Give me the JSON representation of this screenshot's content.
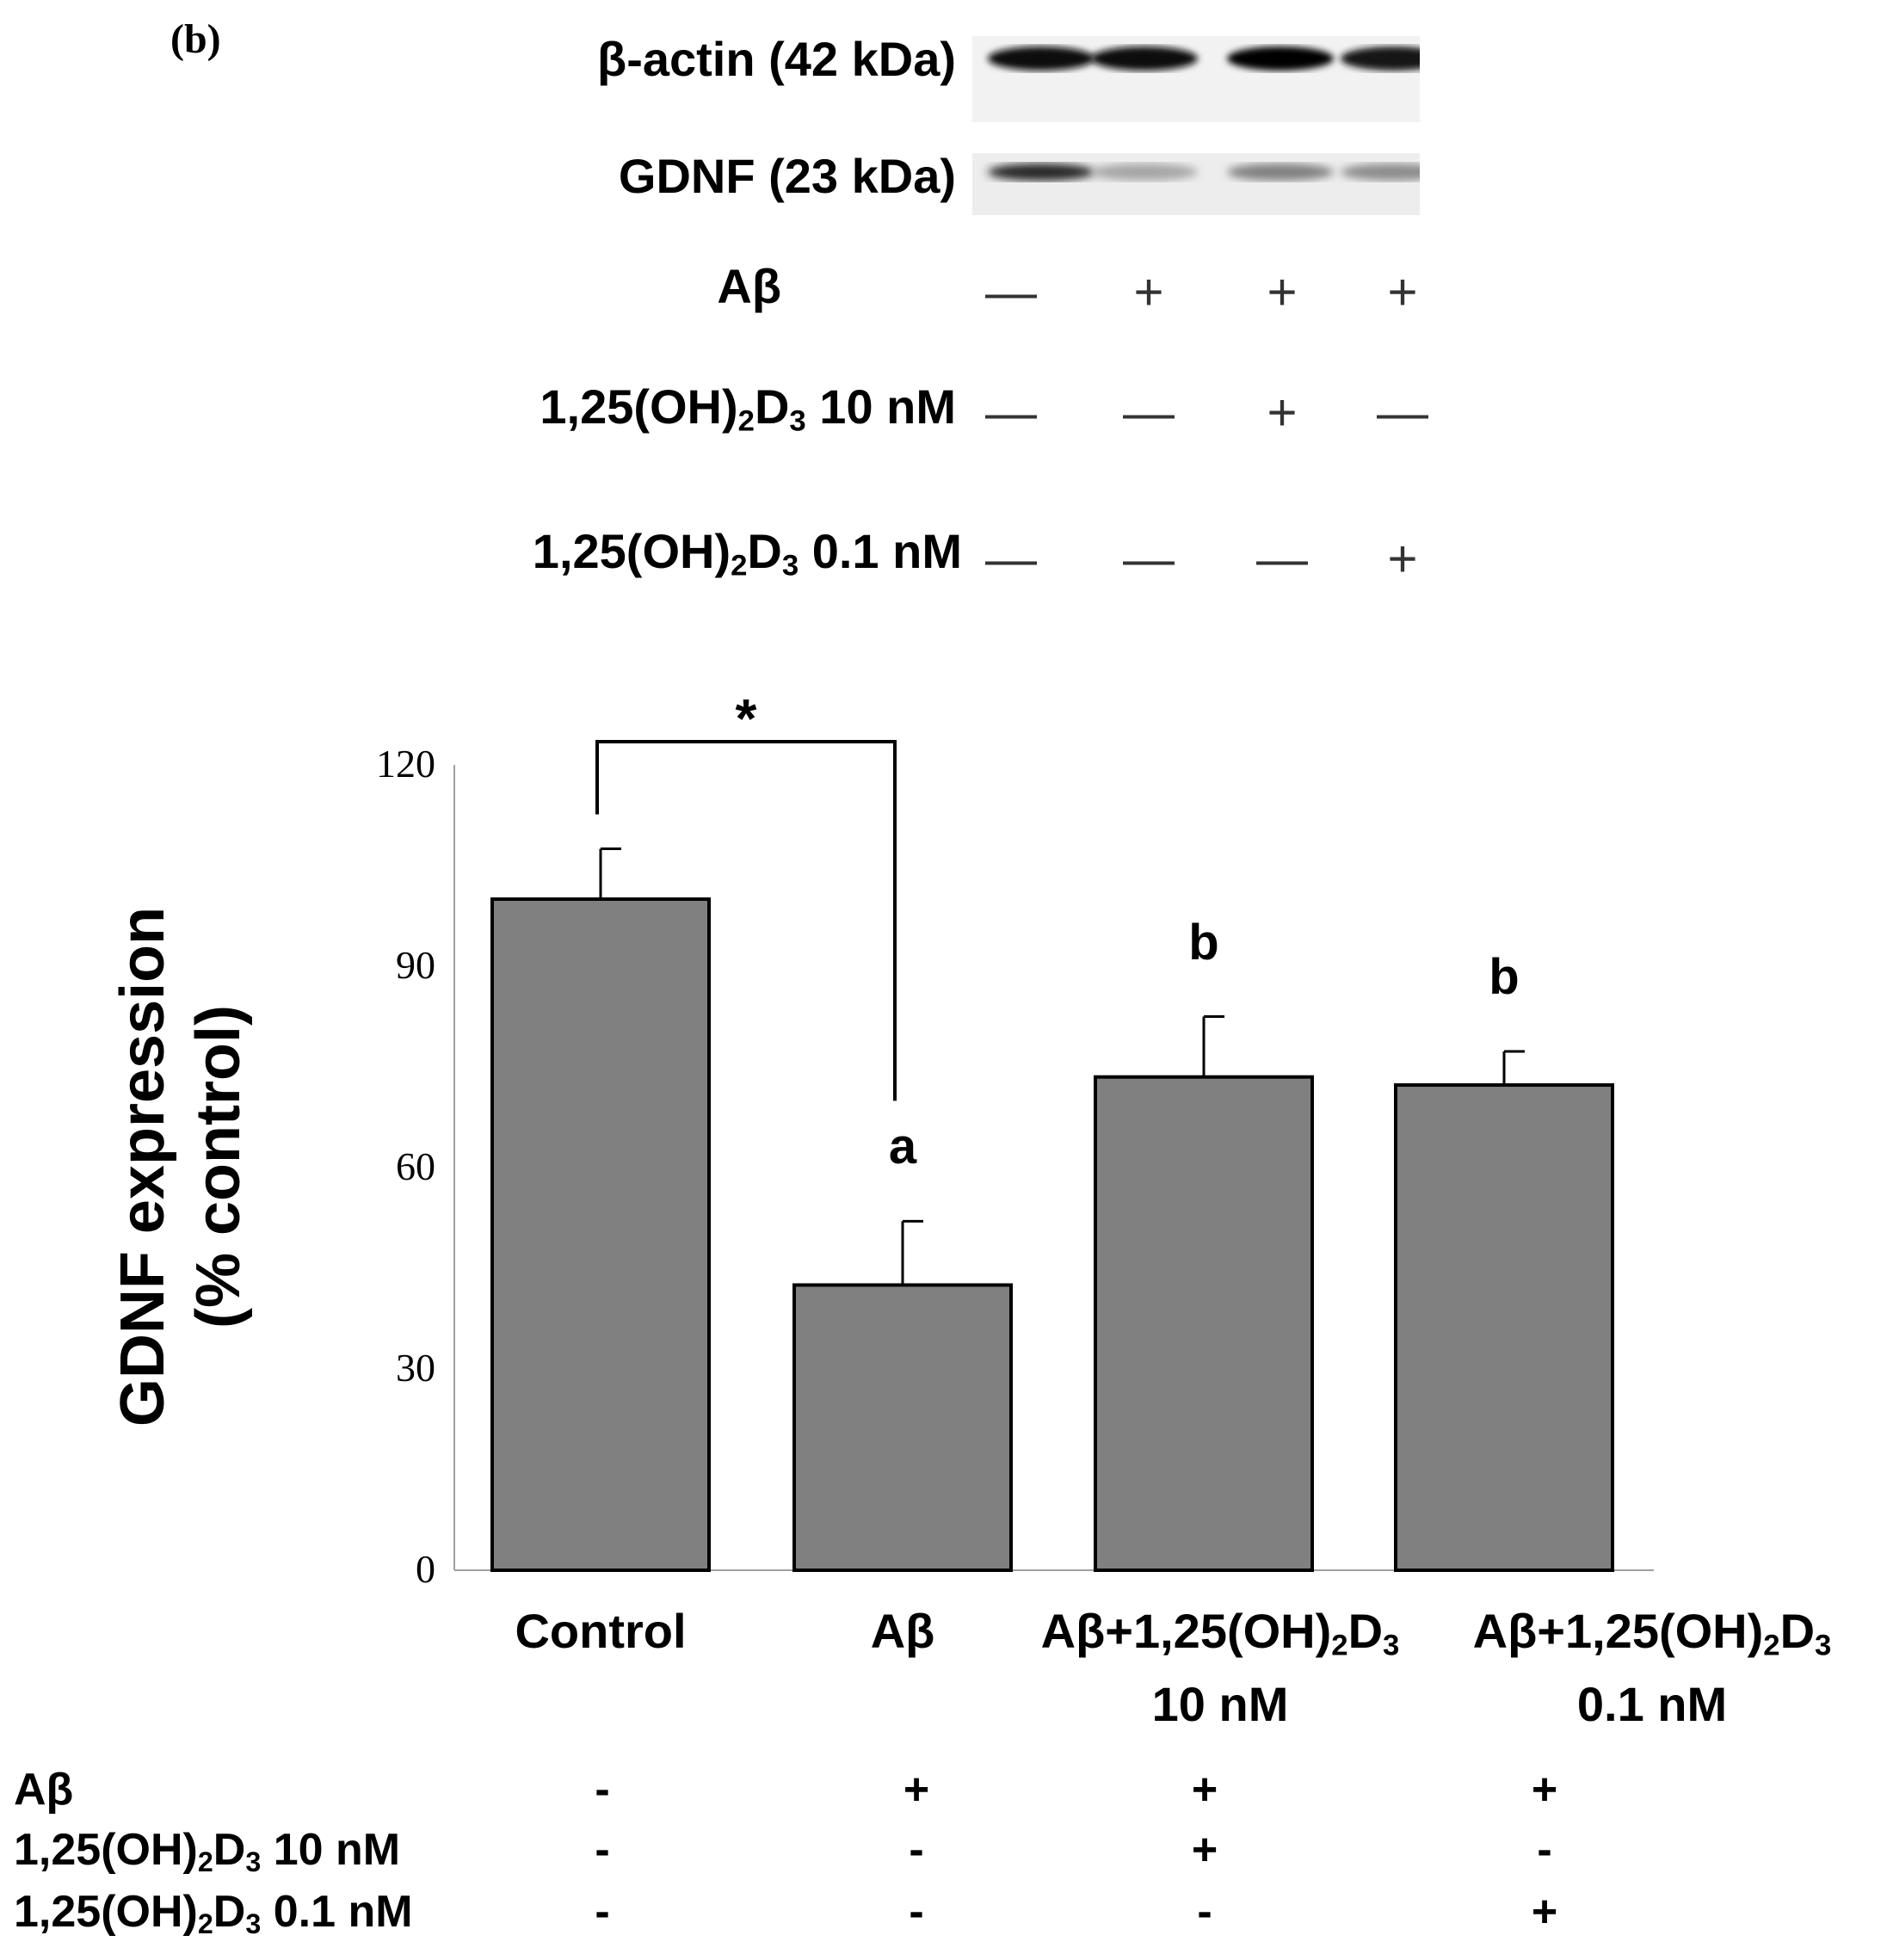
{
  "panel_label": "(b)",
  "western_blot": {
    "bands": [
      {
        "label": "β-actin (42 kDa)",
        "intensity": [
          0.95,
          0.95,
          0.98,
          0.92
        ]
      },
      {
        "label": "GDNF (23 kDa)",
        "intensity": [
          0.85,
          0.35,
          0.5,
          0.45
        ]
      }
    ],
    "conditions": [
      {
        "label_main": "Aβ",
        "label_sub": "",
        "label_tail": "",
        "signs": [
          "—",
          "+",
          "+",
          "+"
        ]
      },
      {
        "label_main": "1,25(OH)",
        "label_sub": "2",
        "label_mid": "D",
        "label_sub2": "3",
        "label_tail": " 10 nM",
        "signs": [
          "—",
          "—",
          "+",
          "—"
        ]
      },
      {
        "label_main": "1,25(OH)",
        "label_sub": "2",
        "label_mid": "D",
        "label_sub2": "3",
        "label_tail": " 0.1 nM",
        "signs": [
          "—",
          "—",
          "—",
          "+"
        ]
      }
    ]
  },
  "chart_data": {
    "type": "bar",
    "ylabel_line1": "GDNF expression",
    "ylabel_line2": "(% control)",
    "ylim": [
      0,
      120
    ],
    "yticks": [
      "0",
      "30",
      "60",
      "90",
      "120"
    ],
    "categories": [
      {
        "line1_main": "Control",
        "line1_sub": "",
        "line1_mid": "",
        "line1_sub2": "",
        "line2": ""
      },
      {
        "line1_main": "Aβ",
        "line1_sub": "",
        "line1_mid": "",
        "line1_sub2": "",
        "line2": ""
      },
      {
        "line1_main": "Aβ+1,25(OH)",
        "line1_sub": "2",
        "line1_mid": "D",
        "line1_sub2": "3",
        "line2": "10 nM"
      },
      {
        "line1_main": "Aβ+1,25(OH)",
        "line1_sub": "2",
        "line1_mid": "D",
        "line1_sub2": "3",
        "line2": "0.1 nM"
      }
    ],
    "values": [
      100,
      42.5,
      73.5,
      72.3
    ],
    "errors": [
      7.5,
      9.5,
      9,
      5
    ],
    "significance_letters": [
      "",
      "a",
      "b",
      "b"
    ],
    "bracket": {
      "from": 0,
      "to": 1,
      "label": "*"
    },
    "bar_color": "#808080",
    "grid": false
  },
  "treatment_table": {
    "rows": [
      {
        "label_main": "Aβ",
        "label_sub": "",
        "label_mid": "",
        "label_sub2": "",
        "label_tail": "",
        "signs": [
          "-",
          "+",
          "+",
          "+"
        ]
      },
      {
        "label_main": "1,25(OH)",
        "label_sub": "2",
        "label_mid": "D",
        "label_sub2": "3",
        "label_tail": " 10 nM",
        "signs": [
          "-",
          "-",
          "+",
          "-"
        ]
      },
      {
        "label_main": "1,25(OH)",
        "label_sub": "2",
        "label_mid": "D",
        "label_sub2": "3",
        "label_tail": " 0.1 nM",
        "signs": [
          "-",
          "-",
          "-",
          "+"
        ]
      }
    ]
  }
}
